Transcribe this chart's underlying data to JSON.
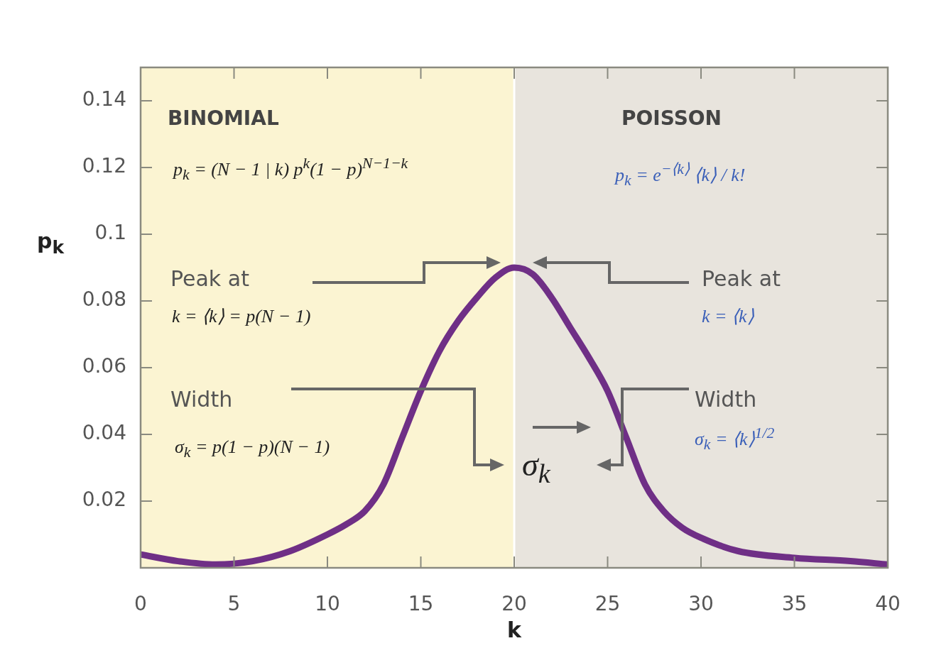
{
  "chart_data": {
    "type": "line",
    "xlabel": "k",
    "ylabel": "p$_{k}$",
    "xlim": [
      0,
      40
    ],
    "xticks": [
      0,
      5,
      10,
      15,
      20,
      25,
      30,
      35,
      40
    ],
    "ylim": [
      0,
      0.15
    ],
    "yticks": [
      0.02,
      0.04,
      0.06,
      0.08,
      0.1,
      0.12,
      0.14
    ],
    "grid": false,
    "legend": false,
    "marker": "none",
    "line_style": "solid",
    "series": [
      {
        "color": "#6f2f86",
        "x": [
          0,
          2,
          4,
          6,
          8,
          10,
          11,
          12,
          13,
          14,
          15,
          16,
          17,
          18,
          19,
          20,
          21,
          22,
          23,
          24,
          25,
          26,
          27,
          28,
          29,
          30,
          32,
          35,
          38,
          40
        ],
        "values": [
          0.004,
          0.002,
          0.001,
          0.002,
          0.005,
          0.01,
          0.013,
          0.017,
          0.025,
          0.039,
          0.053,
          0.065,
          0.074,
          0.081,
          0.087,
          0.09,
          0.088,
          0.081,
          0.072,
          0.063,
          0.053,
          0.039,
          0.025,
          0.017,
          0.012,
          0.009,
          0.005,
          0.003,
          0.002,
          0.001
        ]
      }
    ],
    "bands": [
      {
        "axis": "x",
        "from": 0,
        "to": 20,
        "label": "BINOMIAL",
        "color": "#fbf4d2"
      },
      {
        "axis": "x",
        "from": 20,
        "to": 40,
        "label": "POISSON",
        "color": "#e8e4dd"
      }
    ],
    "annotations": [
      "p$_{k}$ = (N − 1 | k) p$^{k}$(1 − p)$^{N−1−k}$",
      "Peak at",
      "k = ⟨k⟩ = p(N − 1)",
      "Width",
      "σ$_{k}$ = p(1 − p)(N − 1)",
      "p$_{k}$ = e$^{−⟨k⟩}$ ⟨k⟩ / k!",
      "Peak at",
      "k = ⟨k⟩",
      "Width",
      "σ$_{k}$ = ⟨k⟩$^{1/2}$",
      "σ$_{k}$"
    ]
  }
}
